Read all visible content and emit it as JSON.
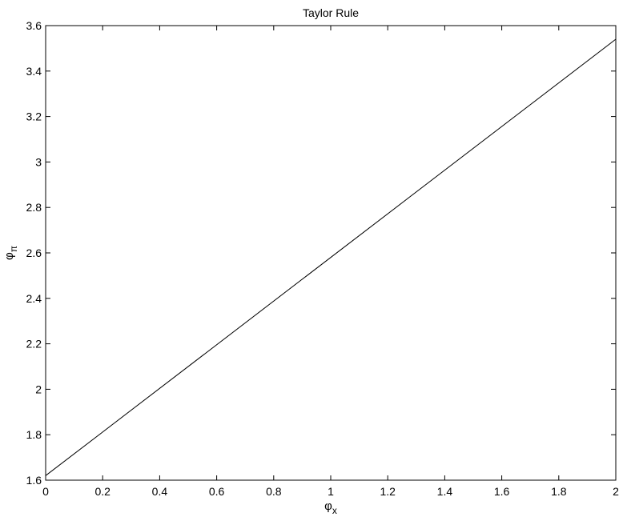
{
  "chart_data": {
    "type": "line",
    "title": "Taylor Rule",
    "xlabel": "φ",
    "xlabel_subscript": "x",
    "ylabel": "φ",
    "ylabel_subscript": "π",
    "xlim": [
      0,
      2
    ],
    "ylim": [
      1.6,
      3.6
    ],
    "xticks": [
      0,
      0.2,
      0.4,
      0.6,
      0.8,
      1,
      1.2,
      1.4,
      1.6,
      1.8,
      2
    ],
    "xtick_labels": [
      "0",
      "0.2",
      "0.4",
      "0.6",
      "0.8",
      "1",
      "1.2",
      "1.4",
      "1.6",
      "1.8",
      "2"
    ],
    "yticks": [
      1.6,
      1.8,
      2,
      2.2,
      2.4,
      2.6,
      2.8,
      3,
      3.2,
      3.4,
      3.6
    ],
    "ytick_labels": [
      "1.6",
      "1.8",
      "2",
      "2.2",
      "2.4",
      "2.6",
      "2.8",
      "3",
      "3.2",
      "3.4",
      "3.6"
    ],
    "grid": false,
    "line_color": "#000000",
    "series": [
      {
        "x": [
          0,
          2
        ],
        "y": [
          1.62,
          3.54
        ]
      }
    ]
  }
}
